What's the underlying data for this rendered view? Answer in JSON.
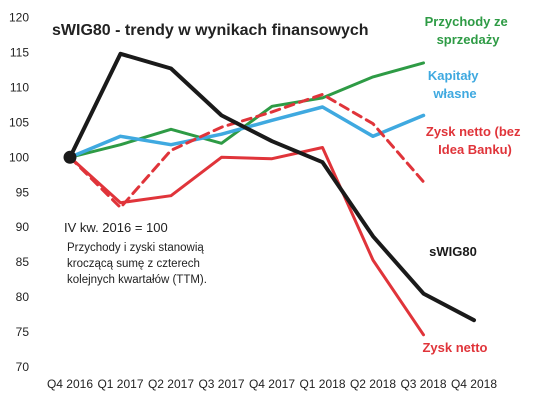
{
  "chart_data": {
    "type": "line",
    "title": "sWIG80 - trendy w wynikach finansowych",
    "categories": [
      "Q4 2016",
      "Q1 2017",
      "Q2 2017",
      "Q3 2017",
      "Q4 2017",
      "Q1 2018",
      "Q2 2018",
      "Q3 2018",
      "Q4 2018"
    ],
    "ylim": [
      70,
      120
    ],
    "yticks": [
      70,
      75,
      80,
      85,
      90,
      95,
      100,
      105,
      110,
      115,
      120
    ],
    "grid": false,
    "series": [
      {
        "name": "sWIG80",
        "color": "#1a1a1a",
        "dashed": false,
        "width": 4,
        "values": [
          100,
          114.8,
          112.7,
          106.0,
          102.3,
          99.3,
          88.7,
          80.5,
          76.7
        ]
      },
      {
        "name": "Przychody ze sprzedaży",
        "color": "#2e9b45",
        "dashed": false,
        "width": 3,
        "values": [
          100,
          101.8,
          104.0,
          102.0,
          107.3,
          108.5,
          111.5,
          113.5,
          null
        ]
      },
      {
        "name": "Kapitały własne",
        "color": "#3fa9e0",
        "dashed": false,
        "width": 3.5,
        "values": [
          100,
          103.0,
          101.8,
          103.3,
          105.3,
          107.2,
          103.0,
          106.0,
          null
        ]
      },
      {
        "name": "Zysk netto (bez Idea Banku)",
        "color": "#e0343a",
        "dashed": true,
        "width": 3,
        "values": [
          100,
          92.8,
          101.0,
          104.3,
          106.5,
          109.0,
          104.8,
          96.5,
          null
        ]
      },
      {
        "name": "Zysk netto",
        "color": "#e0343a",
        "dashed": false,
        "width": 3,
        "values": [
          100,
          93.5,
          94.5,
          100.0,
          99.8,
          101.4,
          85.3,
          74.6,
          null
        ]
      }
    ],
    "start_marker": {
      "x": "Q4 2016",
      "y": 100
    },
    "labels": {
      "przychody": [
        "Przychody ze",
        "sprzedaży"
      ],
      "kapitaly": [
        "Kapitały",
        "własne"
      ],
      "zysk_bez": [
        "Zysk netto (bez",
        "Idea Banku)"
      ],
      "swig": [
        "sWIG80"
      ],
      "zysk": [
        "Zysk netto"
      ]
    },
    "annotation": {
      "line1": "IV kw. 2016 = 100",
      "line2": "Przychody i zyski stanowią",
      "line3": "kroczącą sumę z czterech",
      "line4": "kolejnych kwartałów (TTM)."
    }
  }
}
